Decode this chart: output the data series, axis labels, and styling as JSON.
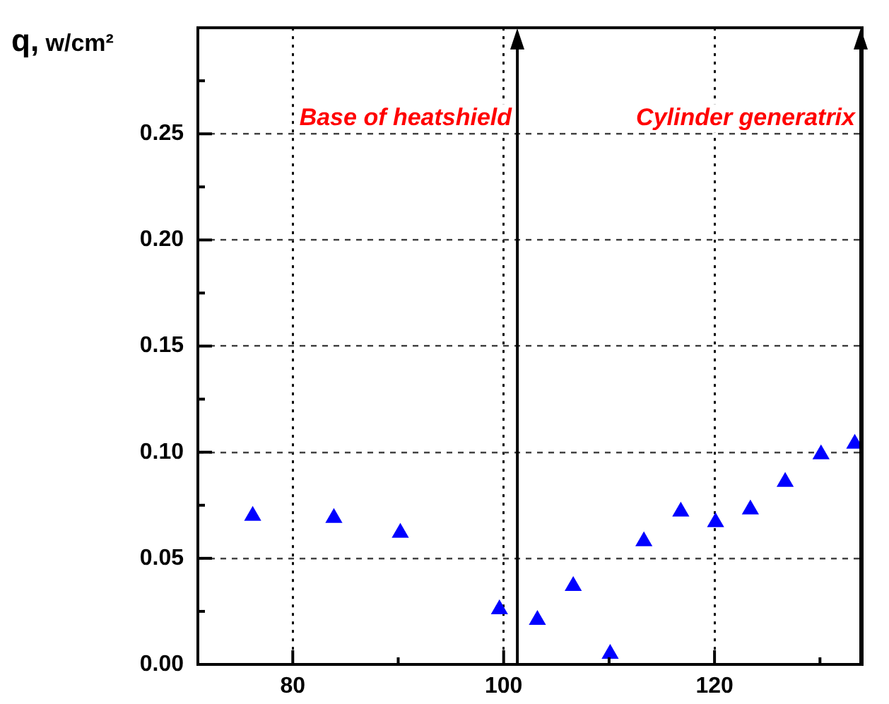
{
  "chart_data": {
    "type": "scatter",
    "ylabel": "q, w/cm²",
    "x": [
      76.2,
      83.9,
      90.2,
      99.6,
      103.2,
      106.6,
      110.1,
      113.3,
      116.8,
      120.1,
      123.4,
      126.7,
      130.1,
      133.3
    ],
    "series": [
      {
        "color": "#0000ff",
        "values": [
          0.07,
          0.069,
          0.062,
          0.026,
          0.021,
          0.037,
          0.005,
          0.058,
          0.072,
          0.067,
          0.073,
          0.086,
          0.099,
          0.104
        ]
      }
    ],
    "marker": "triangle",
    "grid": true,
    "legend": false,
    "xlim": [
      71,
      134
    ],
    "xticks": [
      80,
      {
        "value": 90,
        "label": null
      },
      100,
      {
        "value": 110,
        "label": null
      },
      120,
      {
        "value": 130,
        "label": null
      }
    ],
    "ylim": [
      0,
      0.3
    ],
    "yticks": [
      {
        "value": 0,
        "label": "0.00"
      },
      {
        "value": 0.025,
        "label": null
      },
      0.05,
      {
        "value": 0.075,
        "label": null
      },
      {
        "value": 0.1,
        "label": "0.10"
      },
      {
        "value": 0.125,
        "label": null
      },
      0.15,
      {
        "value": 0.175,
        "label": null
      },
      {
        "value": 0.2,
        "label": "0.20"
      },
      {
        "value": 0.225,
        "label": null
      },
      0.25,
      {
        "value": 0.275,
        "label": null
      }
    ],
    "ref_lines": [
      {
        "axis": "x",
        "value": 101.3,
        "label": "Base of heatshield",
        "color": "#000000"
      },
      {
        "axis": "x",
        "value": 134,
        "label": "Cylinder generatrix",
        "color": "#000000"
      }
    ]
  }
}
